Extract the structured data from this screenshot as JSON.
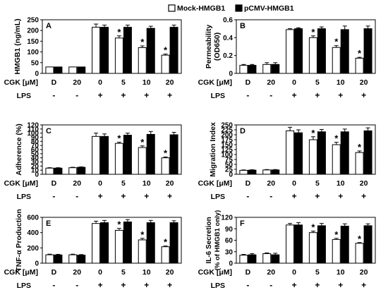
{
  "legend": [
    {
      "label": "Mock-HMGB1",
      "fill": "#ffffff"
    },
    {
      "label": "pCMV-HMGB1",
      "fill": "#000000"
    }
  ],
  "colors": {
    "mock": "#ffffff",
    "pcmv": "#000000",
    "stroke": "#000000"
  },
  "row_labels": {
    "cgk": "CGK [μM]",
    "lps": "LPS"
  },
  "conditions": {
    "cgk": [
      "D",
      "20",
      "0",
      "5",
      "10",
      "20"
    ],
    "lps": [
      "-",
      "-",
      "+",
      "+",
      "+",
      "+"
    ]
  },
  "chart_data": [
    {
      "type": "bar",
      "panel": "A",
      "ylabel": "HMGB1 (ng/mL)",
      "ylim": [
        0,
        250
      ],
      "yticks": [
        "0",
        "50",
        "100",
        "150",
        "200",
        "250"
      ],
      "categories": [
        "D",
        "20",
        "0",
        "5",
        "10",
        "20"
      ],
      "series": [
        {
          "name": "Mock-HMGB1",
          "values": [
            30,
            30,
            215,
            165,
            120,
            85
          ],
          "errors": [
            0,
            0,
            15,
            10,
            8,
            5
          ]
        },
        {
          "name": "pCMV-HMGB1",
          "values": [
            30,
            30,
            215,
            215,
            210,
            215
          ],
          "errors": [
            0,
            0,
            10,
            10,
            10,
            10
          ]
        }
      ],
      "significant": [
        false,
        false,
        false,
        true,
        true,
        true
      ]
    },
    {
      "type": "bar",
      "panel": "B",
      "ylabel": "Permeability (OD650)",
      "ylim": [
        0,
        0.6
      ],
      "yticks": [
        "0",
        "0.2",
        "0.4",
        "0.6"
      ],
      "categories": [
        "D",
        "20",
        "0",
        "5",
        "10",
        "20"
      ],
      "series": [
        {
          "name": "Mock-HMGB1",
          "values": [
            0.09,
            0.1,
            0.49,
            0.4,
            0.29,
            0.17
          ],
          "errors": [
            0.01,
            0.02,
            0.01,
            0.02,
            0.02,
            0.01
          ]
        },
        {
          "name": "pCMV-HMGB1",
          "values": [
            0.09,
            0.1,
            0.5,
            0.5,
            0.49,
            0.5
          ],
          "errors": [
            0.01,
            0.02,
            0.01,
            0.02,
            0.04,
            0.03
          ]
        }
      ],
      "significant": [
        false,
        false,
        false,
        true,
        true,
        true
      ]
    },
    {
      "type": "bar",
      "panel": "C",
      "ylabel": "Adherence (%)",
      "ylim": [
        0,
        120
      ],
      "yticks": [
        "0",
        "10",
        "20",
        "30",
        "40",
        "50",
        "60",
        "70",
        "80",
        "90",
        "100",
        "110",
        "120"
      ],
      "categories": [
        "D",
        "20",
        "0",
        "5",
        "10",
        "20"
      ],
      "series": [
        {
          "name": "Mock-HMGB1",
          "values": [
            15,
            16,
            92,
            75,
            65,
            40
          ],
          "errors": [
            1,
            1,
            8,
            3,
            4,
            2
          ]
        },
        {
          "name": "pCMV-HMGB1",
          "values": [
            15,
            17,
            92,
            95,
            97,
            96
          ],
          "errors": [
            1,
            1,
            6,
            5,
            7,
            6
          ]
        }
      ],
      "significant": [
        false,
        false,
        false,
        true,
        true,
        true
      ]
    },
    {
      "type": "bar",
      "panel": "D",
      "ylabel": "Migration Index",
      "ylim": [
        0,
        250
      ],
      "yticks": [
        "0",
        "25",
        "50",
        "75",
        "100",
        "125",
        "150",
        "175",
        "200",
        "225",
        "250"
      ],
      "categories": [
        "D",
        "20",
        "0",
        "5",
        "10",
        "20"
      ],
      "series": [
        {
          "name": "Mock-HMGB1",
          "values": [
            20,
            22,
            220,
            175,
            150,
            110
          ],
          "errors": [
            2,
            2,
            18,
            15,
            12,
            8
          ]
        },
        {
          "name": "pCMV-HMGB1",
          "values": [
            21,
            22,
            210,
            215,
            215,
            220
          ],
          "errors": [
            2,
            2,
            15,
            12,
            14,
            15
          ]
        }
      ],
      "significant": [
        false,
        false,
        false,
        true,
        true,
        true
      ]
    },
    {
      "type": "bar",
      "panel": "E",
      "ylabel": "TNF-α Production",
      "ylim": [
        0,
        600
      ],
      "yticks": [
        "0",
        "200",
        "400",
        "600"
      ],
      "categories": [
        "D",
        "20",
        "0",
        "5",
        "10",
        "20"
      ],
      "series": [
        {
          "name": "Mock-HMGB1",
          "values": [
            110,
            110,
            520,
            430,
            305,
            215
          ],
          "errors": [
            8,
            8,
            30,
            25,
            20,
            10
          ]
        },
        {
          "name": "pCMV-HMGB1",
          "values": [
            108,
            105,
            530,
            540,
            530,
            530
          ],
          "errors": [
            8,
            8,
            30,
            30,
            30,
            25
          ]
        }
      ],
      "significant": [
        false,
        false,
        false,
        true,
        true,
        true
      ]
    },
    {
      "type": "bar",
      "panel": "F",
      "ylabel": "IL-6 Secretion (% of HMGB1 only)",
      "ylim": [
        0,
        120
      ],
      "yticks": [
        "0",
        "30",
        "60",
        "90",
        "120"
      ],
      "categories": [
        "D",
        "20",
        "0",
        "5",
        "10",
        "20"
      ],
      "series": [
        {
          "name": "Mock-HMGB1",
          "values": [
            21,
            25,
            100,
            80,
            62,
            52
          ],
          "errors": [
            2,
            2,
            4,
            4,
            3,
            2
          ]
        },
        {
          "name": "pCMV-HMGB1",
          "values": [
            22,
            22,
            100,
            98,
            97,
            98
          ],
          "errors": [
            3,
            4,
            6,
            6,
            6,
            5
          ]
        }
      ],
      "significant": [
        false,
        false,
        false,
        true,
        true,
        true
      ]
    }
  ]
}
